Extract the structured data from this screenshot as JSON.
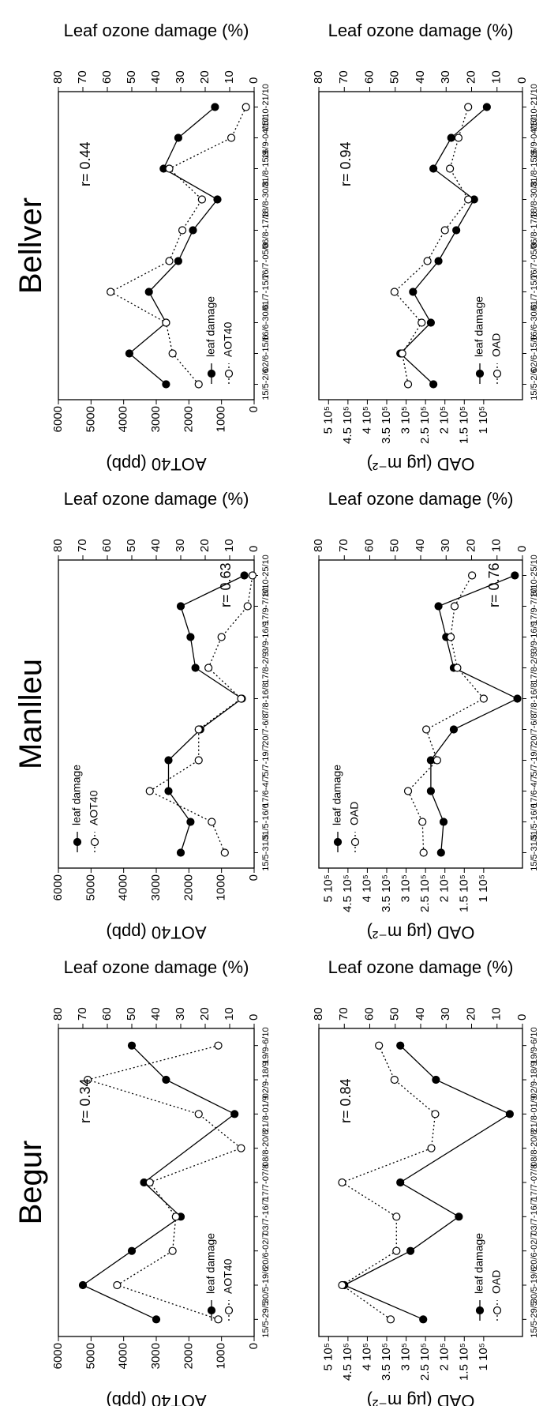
{
  "sites": [
    "Begur",
    "Manlleu",
    "Bellver"
  ],
  "chart_data": [
    {
      "type": "line",
      "site": "Begur",
      "metric": "AOT40 (ppb)",
      "categories": [
        "15/5-29/5",
        "30/5-19/6",
        "20/6-02/7",
        "03/7-16/7",
        "17/7-07/8",
        "08/8-20/8",
        "21/8-01/9",
        "02/9-18/9",
        "19/9-6/10"
      ],
      "xlabel": "",
      "ylabel": "AOT40 (ppb)",
      "ylim": [
        0,
        6000
      ],
      "yticks": [
        "0",
        "1000",
        "2000",
        "3000",
        "4000",
        "5000",
        "6000"
      ],
      "ylabel2": "Leaf ozone damage (%)",
      "ylim2": [
        0,
        80
      ],
      "yticks2": [
        "0",
        "10",
        "20",
        "30",
        "40",
        "50",
        "60",
        "70",
        "80"
      ],
      "r_label": "r= 0.34",
      "legend": "bottom-right",
      "series": [
        {
          "name": "leaf damage",
          "axis": "right",
          "marker": "filled",
          "line": "solid",
          "values": [
            40,
            70,
            50,
            30,
            45,
            null,
            8,
            36,
            50
          ]
        },
        {
          "name": "AOT40",
          "axis": "left",
          "marker": "open",
          "line": "dotted",
          "values": [
            1100,
            4200,
            2500,
            2400,
            3200,
            400,
            1700,
            5100,
            1100
          ]
        }
      ]
    },
    {
      "type": "line",
      "site": "Begur",
      "metric": "OAD (µg m⁻²)",
      "categories": [
        "15/5-29/5",
        "30/5-19/6",
        "20/6-02/7",
        "03/7-16/7",
        "17/7-07/8",
        "08/8-20/8",
        "21/8-01/9",
        "02/9-18/9",
        "19/9-6/10"
      ],
      "xlabel": "",
      "ylabel": "OAD (µg m⁻²)",
      "ylim": [
        0,
        525000
      ],
      "yticks": [
        "1 10⁵",
        "1.5 10⁵",
        "2 10⁵",
        "2.5 10⁵",
        "3 10⁵",
        "3.5 10⁵",
        "4 10⁵",
        "4.5 10⁵",
        "5 10⁵"
      ],
      "ylabel2": "Leaf ozone damage (%)",
      "ylim2": [
        0,
        80
      ],
      "yticks2": [
        "0",
        "10",
        "20",
        "30",
        "40",
        "50",
        "60",
        "70",
        "80"
      ],
      "r_label": "r= 0.84",
      "legend": "bottom-right",
      "series": [
        {
          "name": "leaf damage",
          "axis": "right",
          "marker": "filled",
          "line": "solid",
          "values": [
            39,
            70,
            44,
            25,
            48,
            null,
            5,
            34,
            48
          ]
        },
        {
          "name": "OAD",
          "axis": "left",
          "marker": "open",
          "line": "dotted",
          "values": [
            340000,
            465000,
            325000,
            325000,
            465000,
            235000,
            225000,
            330000,
            370000
          ]
        }
      ]
    },
    {
      "type": "line",
      "site": "Manlleu",
      "metric": "AOT40 (ppb)",
      "categories": [
        "15/5-31/5",
        "31/5-16/6",
        "17/6-4/7",
        "5/7-19/7",
        "20/7-6/8",
        "7/8-16/8",
        "17/8-2/9",
        "3/9-16/9",
        "17/9-7/10",
        "8/10-25/10"
      ],
      "xlabel": "",
      "ylabel": "AOT40 (ppb)",
      "ylim": [
        0,
        6000
      ],
      "yticks": [
        "0",
        "1000",
        "2000",
        "3000",
        "4000",
        "5000",
        "6000"
      ],
      "ylabel2": "Leaf ozone damage (%)",
      "ylim2": [
        0,
        80
      ],
      "yticks2": [
        "0",
        "10",
        "20",
        "30",
        "40",
        "50",
        "60",
        "70",
        "80"
      ],
      "r_label": "r= 0.63",
      "legend": "top-left",
      "series": [
        {
          "name": "leaf damage",
          "axis": "right",
          "marker": "filled",
          "line": "solid",
          "values": [
            30,
            26,
            35,
            35,
            22,
            5,
            24,
            26,
            30,
            4
          ]
        },
        {
          "name": "AOT40",
          "axis": "left",
          "marker": "open",
          "line": "dotted",
          "values": [
            900,
            1300,
            3200,
            1700,
            1700,
            400,
            1400,
            1000,
            200,
            50
          ]
        }
      ]
    },
    {
      "type": "line",
      "site": "Manlleu",
      "metric": "OAD (µg m⁻²)",
      "categories": [
        "15/5-31/5",
        "31/5-16/6",
        "17/6-4/7",
        "5/7-19/7",
        "20/7-6/8",
        "7/8-16/8",
        "17/8-2/9",
        "3/9-16/9",
        "17/9-7/10",
        "8/10-25/10"
      ],
      "xlabel": "",
      "ylabel": "OAD (µg m⁻²)",
      "ylim": [
        0,
        525000
      ],
      "yticks": [
        "1 10⁵",
        "1.5 10⁵",
        "2 10⁵",
        "2.5 10⁵",
        "3 10⁵",
        "3.5 10⁵",
        "4 10⁵",
        "4.5 10⁵",
        "5 10⁵"
      ],
      "ylabel2": "Leaf ozone damage (%)",
      "ylim2": [
        0,
        80
      ],
      "yticks2": [
        "0",
        "10",
        "20",
        "30",
        "40",
        "50",
        "60",
        "70",
        "80"
      ],
      "r_label": "r= 0.76",
      "legend": "top-left",
      "series": [
        {
          "name": "leaf damage",
          "axis": "right",
          "marker": "filled",
          "line": "solid",
          "values": [
            32,
            31,
            36,
            36,
            27,
            2,
            27,
            30,
            33,
            3
          ]
        },
        {
          "name": "OAD",
          "axis": "left",
          "marker": "open",
          "line": "dotted",
          "values": [
            255000,
            258000,
            295000,
            220000,
            248000,
            100000,
            168000,
            185000,
            175000,
            130000
          ]
        }
      ]
    },
    {
      "type": "line",
      "site": "Bellver",
      "metric": "AOT40 (ppb)",
      "categories": [
        "15/5-2/6",
        "02/6-15/6",
        "16/6-30/6",
        "01/7-15/7",
        "16/7-05/8",
        "06/8-17/8",
        "18/8-30/8",
        "31/8-15/9",
        "16/9-04/10",
        "05/10-21/10"
      ],
      "xlabel": "",
      "ylabel": "AOT40 (ppb)",
      "ylim": [
        0,
        6000
      ],
      "yticks": [
        "0",
        "1000",
        "2000",
        "3000",
        "4000",
        "5000",
        "6000"
      ],
      "ylabel2": "Leaf ozone damage (%)",
      "ylim2": [
        0,
        80
      ],
      "yticks2": [
        "0",
        "10",
        "20",
        "30",
        "40",
        "50",
        "60",
        "70",
        "80"
      ],
      "r_label": "r= 0.44",
      "legend": "bottom-right",
      "series": [
        {
          "name": "leaf damage",
          "axis": "right",
          "marker": "filled",
          "line": "solid",
          "values": [
            36,
            51,
            36,
            43,
            31,
            25,
            15,
            37,
            31,
            16
          ]
        },
        {
          "name": "AOT40",
          "axis": "left",
          "marker": "open",
          "line": "dotted",
          "values": [
            1700,
            2500,
            2700,
            4400,
            2600,
            2200,
            1600,
            2600,
            700,
            250
          ]
        }
      ]
    },
    {
      "type": "line",
      "site": "Bellver",
      "metric": "OAD (µg m⁻²)",
      "categories": [
        "15/5-2/6",
        "02/6-15/6",
        "16/6-30/6",
        "01/7-15/7",
        "16/7-05/8",
        "06/8-17/8",
        "18/8-30/8",
        "31/8-15/9",
        "16/9-04/10",
        "05/10-21/10"
      ],
      "xlabel": "",
      "ylabel": "OAD (µg m⁻²)",
      "ylim": [
        0,
        525000
      ],
      "yticks": [
        "1 10⁵",
        "1.5 10⁵",
        "2 10⁵",
        "2.5 10⁵",
        "3 10⁵",
        "3.5 10⁵",
        "4 10⁵",
        "4.5 10⁵",
        "5 10⁵"
      ],
      "ylabel2": "Leaf ozone damage (%)",
      "ylim2": [
        0,
        80
      ],
      "yticks2": [
        "0",
        "10",
        "20",
        "30",
        "40",
        "50",
        "60",
        "70",
        "80"
      ],
      "r_label": "r= 0.94",
      "legend": "bottom-right",
      "series": [
        {
          "name": "leaf damage",
          "axis": "right",
          "marker": "filled",
          "line": "solid",
          "values": [
            35,
            48,
            36,
            43,
            33,
            26,
            19,
            35,
            28,
            14
          ]
        },
        {
          "name": "OAD",
          "axis": "left",
          "marker": "open",
          "line": "dotted",
          "values": [
            295000,
            310000,
            260000,
            330000,
            245000,
            200000,
            140000,
            187000,
            165000,
            140000
          ]
        }
      ]
    }
  ]
}
